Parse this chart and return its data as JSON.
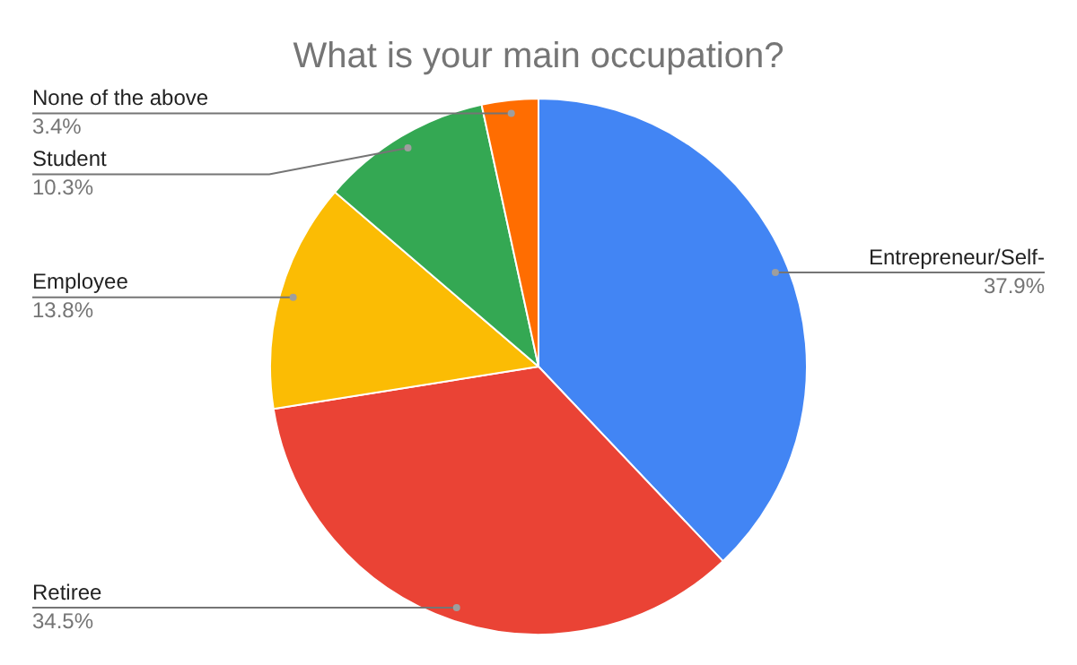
{
  "chart_data": {
    "type": "pie",
    "title": "What is your main occupation?",
    "categories": [
      "Entrepreneur/Self-",
      "Retiree",
      "Employee",
      "Student",
      "None of the above"
    ],
    "values": [
      37.9,
      34.5,
      13.8,
      10.3,
      3.4
    ],
    "colors": [
      "#4285f4",
      "#ea4335",
      "#fbbc04",
      "#34a853",
      "#ff6d01"
    ],
    "value_labels": [
      "37.9%",
      "34.5%",
      "13.8%",
      "10.3%",
      "3.4%"
    ],
    "legend": false
  }
}
